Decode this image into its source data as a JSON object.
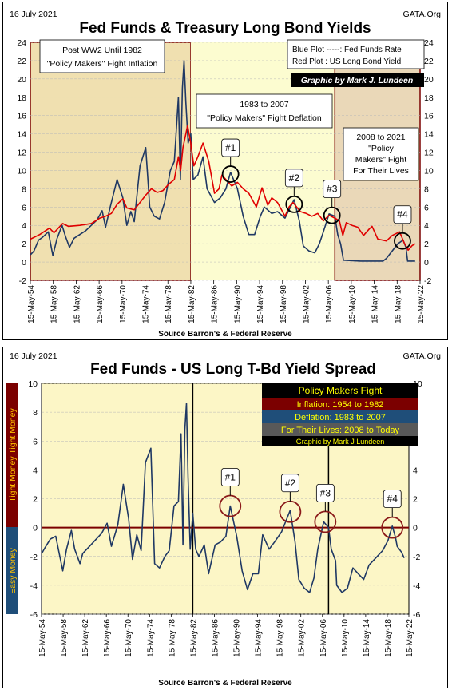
{
  "chart_data": [
    {
      "type": "line",
      "date": "16 July 2021",
      "brand": "GATA.Org",
      "title": "Fed Funds & Treasury Long Bond Yields",
      "source": "Source Barron's & Federal Reserve",
      "ylim": [
        -2,
        24
      ],
      "yticks": [
        -2,
        0,
        2,
        4,
        6,
        8,
        10,
        12,
        14,
        16,
        18,
        20,
        22,
        24
      ],
      "xlim": [
        1954.37,
        2022.37
      ],
      "xticks": [
        "15-May-54",
        "15-May-58",
        "15-May-62",
        "15-May-66",
        "15-May-70",
        "15-May-74",
        "15-May-78",
        "15-May-82",
        "15-May-86",
        "15-May-90",
        "15-May-94",
        "15-May-98",
        "15-May-02",
        "15-May-06",
        "15-May-10",
        "15-May-14",
        "15-May-18",
        "15-May-22"
      ],
      "legend": {
        "blue": "Blue Plot -----: Fed Funds Rate",
        "red": "Red Plot : US Long Bond Yield",
        "credit": "Graphic by Mark J. Lundeen"
      },
      "regions": [
        {
          "from": 1954.37,
          "to": 1982.37,
          "label_lines": [
            "Post WW2 Until 1982",
            "\"Policy Makers\" Fight Inflation"
          ]
        },
        {
          "from": 1982.37,
          "to": 2007.5,
          "label_lines": [
            "1983 to 2007",
            "\"Policy Makers\" Fight Deflation"
          ]
        },
        {
          "from": 2007.5,
          "to": 2022.37,
          "label_lines": [
            "2008 to 2021",
            "\"Policy",
            "Makers\" Fight",
            "For Their Lives"
          ]
        }
      ],
      "markers": [
        {
          "label": "#1",
          "x": 1989.3,
          "y": 9.6
        },
        {
          "label": "#2",
          "x": 2000.4,
          "y": 6.3
        },
        {
          "label": "#3",
          "x": 2007.0,
          "y": 5.1
        },
        {
          "label": "#4",
          "x": 2019.3,
          "y": 2.3
        }
      ],
      "series": [
        {
          "name": "Fed Funds Rate",
          "color": "#1f3864",
          "points": [
            [
              1954.4,
              0.8
            ],
            [
              1955.0,
              1.2
            ],
            [
              1955.8,
              2.4
            ],
            [
              1956.5,
              2.7
            ],
            [
              1957.5,
              3.3
            ],
            [
              1958.3,
              0.7
            ],
            [
              1959.0,
              2.5
            ],
            [
              1959.9,
              4.0
            ],
            [
              1960.5,
              2.8
            ],
            [
              1961.2,
              1.6
            ],
            [
              1962.0,
              2.6
            ],
            [
              1963.0,
              3.0
            ],
            [
              1964.0,
              3.4
            ],
            [
              1965.0,
              4.0
            ],
            [
              1966.0,
              4.6
            ],
            [
              1966.9,
              5.6
            ],
            [
              1967.5,
              3.8
            ],
            [
              1968.3,
              6.0
            ],
            [
              1969.5,
              9.0
            ],
            [
              1970.5,
              7.0
            ],
            [
              1971.2,
              4.0
            ],
            [
              1971.9,
              5.5
            ],
            [
              1972.5,
              4.4
            ],
            [
              1973.5,
              10.5
            ],
            [
              1974.5,
              12.5
            ],
            [
              1975.2,
              6.0
            ],
            [
              1976.0,
              5.0
            ],
            [
              1976.9,
              4.7
            ],
            [
              1977.8,
              6.5
            ],
            [
              1978.8,
              10.0
            ],
            [
              1979.5,
              11.0
            ],
            [
              1980.2,
              18.0
            ],
            [
              1980.55,
              9.0
            ],
            [
              1980.9,
              19.0
            ],
            [
              1981.2,
              22.0
            ],
            [
              1981.5,
              17.5
            ],
            [
              1981.9,
              13.0
            ],
            [
              1982.37,
              14.0
            ],
            [
              1982.8,
              9.0
            ],
            [
              1983.6,
              9.5
            ],
            [
              1984.5,
              11.5
            ],
            [
              1985.2,
              8.0
            ],
            [
              1986.5,
              6.5
            ],
            [
              1987.5,
              7.0
            ],
            [
              1988.5,
              8.0
            ],
            [
              1989.3,
              9.8
            ],
            [
              1990.5,
              8.0
            ],
            [
              1991.5,
              5.0
            ],
            [
              1992.5,
              3.0
            ],
            [
              1993.5,
              3.0
            ],
            [
              1994.5,
              5.0
            ],
            [
              1995.2,
              6.0
            ],
            [
              1996.5,
              5.3
            ],
            [
              1997.5,
              5.5
            ],
            [
              1998.8,
              4.8
            ],
            [
              2000.4,
              6.8
            ],
            [
              2001.3,
              4.5
            ],
            [
              2002.0,
              1.75
            ],
            [
              2003.0,
              1.2
            ],
            [
              2004.0,
              1.0
            ],
            [
              2004.8,
              2.0
            ],
            [
              2005.5,
              3.3
            ],
            [
              2006.5,
              5.25
            ],
            [
              2007.5,
              5.0
            ],
            [
              2008.0,
              3.0
            ],
            [
              2008.5,
              2.0
            ],
            [
              2009.0,
              0.2
            ],
            [
              2012.0,
              0.1
            ],
            [
              2015.9,
              0.1
            ],
            [
              2016.5,
              0.4
            ],
            [
              2017.5,
              1.2
            ],
            [
              2018.5,
              2.0
            ],
            [
              2019.4,
              2.4
            ],
            [
              2019.9,
              1.6
            ],
            [
              2020.2,
              0.1
            ],
            [
              2021.5,
              0.1
            ]
          ]
        },
        {
          "name": "US Long Bond Yield",
          "color": "#e00000",
          "points": [
            [
              1954.4,
              2.5
            ],
            [
              1956.0,
              3.0
            ],
            [
              1957.7,
              3.7
            ],
            [
              1958.5,
              3.2
            ],
            [
              1960.0,
              4.2
            ],
            [
              1961.0,
              3.9
            ],
            [
              1963.0,
              4.0
            ],
            [
              1965.0,
              4.2
            ],
            [
              1966.5,
              4.8
            ],
            [
              1967.5,
              5.0
            ],
            [
              1968.5,
              5.3
            ],
            [
              1969.5,
              6.3
            ],
            [
              1970.5,
              6.9
            ],
            [
              1971.2,
              5.9
            ],
            [
              1972.5,
              5.7
            ],
            [
              1973.5,
              6.5
            ],
            [
              1974.5,
              7.3
            ],
            [
              1975.5,
              8.0
            ],
            [
              1976.5,
              7.6
            ],
            [
              1977.5,
              7.8
            ],
            [
              1978.5,
              8.5
            ],
            [
              1979.5,
              9.0
            ],
            [
              1980.2,
              11.5
            ],
            [
              1980.6,
              10.0
            ],
            [
              1981.0,
              12.5
            ],
            [
              1981.8,
              14.9
            ],
            [
              1982.37,
              13.0
            ],
            [
              1982.9,
              10.5
            ],
            [
              1983.6,
              11.5
            ],
            [
              1984.5,
              13.0
            ],
            [
              1985.5,
              11.0
            ],
            [
              1986.5,
              7.5
            ],
            [
              1987.3,
              8.0
            ],
            [
              1987.8,
              9.5
            ],
            [
              1988.5,
              9.0
            ],
            [
              1989.5,
              8.3
            ],
            [
              1990.5,
              8.7
            ],
            [
              1991.5,
              8.0
            ],
            [
              1992.5,
              7.5
            ],
            [
              1993.8,
              6.0
            ],
            [
              1994.8,
              8.1
            ],
            [
              1995.8,
              6.2
            ],
            [
              1996.5,
              7.0
            ],
            [
              1997.5,
              6.5
            ],
            [
              1998.8,
              5.0
            ],
            [
              1999.5,
              6.0
            ],
            [
              2000.2,
              6.5
            ],
            [
              2001.5,
              5.5
            ],
            [
              2002.5,
              5.3
            ],
            [
              2003.5,
              5.0
            ],
            [
              2004.5,
              5.3
            ],
            [
              2005.5,
              4.5
            ],
            [
              2006.5,
              5.1
            ],
            [
              2007.5,
              4.8
            ],
            [
              2008.3,
              4.5
            ],
            [
              2008.9,
              2.9
            ],
            [
              2009.5,
              4.3
            ],
            [
              2010.5,
              4.0
            ],
            [
              2011.5,
              3.8
            ],
            [
              2012.5,
              2.9
            ],
            [
              2013.5,
              3.6
            ],
            [
              2014.0,
              3.9
            ],
            [
              2015.0,
              2.5
            ],
            [
              2016.5,
              2.3
            ],
            [
              2017.5,
              2.9
            ],
            [
              2018.8,
              3.3
            ],
            [
              2019.6,
              2.1
            ],
            [
              2020.3,
              1.3
            ],
            [
              2021.0,
              1.8
            ],
            [
              2021.5,
              2.0
            ]
          ]
        }
      ]
    },
    {
      "type": "line",
      "date": "16 July 2021",
      "brand": "GATA.Org",
      "title": "Fed Funds - US Long T-Bd Yield Spread",
      "source": "Source Barron's & Federal Reserve",
      "ylim": [
        -6,
        10
      ],
      "yticks": [
        -6,
        -4,
        -2,
        0,
        2,
        4,
        6,
        8,
        10
      ],
      "xlim": [
        1954.37,
        2022.37
      ],
      "xticks": [
        "15-May-54",
        "15-May-58",
        "15-May-62",
        "15-May-66",
        "15-May-70",
        "15-May-74",
        "15-May-78",
        "15-May-82",
        "15-May-86",
        "15-May-90",
        "15-May-94",
        "15-May-98",
        "15-May-02",
        "15-May-06",
        "15-May-10",
        "15-May-14",
        "15-May-18",
        "15-May-22"
      ],
      "side_labels": {
        "top": "Tight Money  Tight Money",
        "bottom": "Easy Money"
      },
      "legend": {
        "title": "Policy Makers Fight",
        "inflation": "Inflation: 1954 to 1982",
        "deflation": "Deflation: 1983 to 2007",
        "lives": "For Their Lives: 2008 to Today",
        "credit": "Graphic by Mark J Lundeen"
      },
      "markers": [
        {
          "label": "#1",
          "x": 1989.3,
          "y": 1.5
        },
        {
          "label": "#2",
          "x": 2000.4,
          "y": 1.1
        },
        {
          "label": "#3",
          "x": 2006.9,
          "y": 0.4
        },
        {
          "label": "#4",
          "x": 2019.3,
          "y": 0.0
        }
      ],
      "series": [
        {
          "name": "Spread",
          "color": "#1f3864",
          "points": [
            [
              1954.4,
              -1.8
            ],
            [
              1955.0,
              -1.4
            ],
            [
              1956.0,
              -0.8
            ],
            [
              1957.0,
              -0.6
            ],
            [
              1958.3,
              -3.0
            ],
            [
              1959.0,
              -1.5
            ],
            [
              1959.9,
              -0.2
            ],
            [
              1960.5,
              -1.5
            ],
            [
              1961.5,
              -2.5
            ],
            [
              1962.0,
              -1.8
            ],
            [
              1963.5,
              -1.2
            ],
            [
              1964.5,
              -0.8
            ],
            [
              1965.5,
              -0.4
            ],
            [
              1966.5,
              0.3
            ],
            [
              1967.3,
              -1.3
            ],
            [
              1968.5,
              0.2
            ],
            [
              1969.5,
              3.0
            ],
            [
              1970.5,
              0.6
            ],
            [
              1971.2,
              -2.2
            ],
            [
              1972.0,
              -0.5
            ],
            [
              1972.8,
              -1.6
            ],
            [
              1973.6,
              4.5
            ],
            [
              1974.6,
              5.5
            ],
            [
              1975.3,
              -2.5
            ],
            [
              1976.2,
              -2.8
            ],
            [
              1977.2,
              -2.0
            ],
            [
              1978.0,
              -1.6
            ],
            [
              1978.9,
              1.5
            ],
            [
              1979.7,
              1.8
            ],
            [
              1980.2,
              6.5
            ],
            [
              1980.55,
              -1.2
            ],
            [
              1980.9,
              6.8
            ],
            [
              1981.2,
              8.6
            ],
            [
              1981.5,
              3.5
            ],
            [
              1981.9,
              -1.5
            ],
            [
              1982.37,
              1.0
            ],
            [
              1982.9,
              -1.5
            ],
            [
              1983.5,
              -2.0
            ],
            [
              1984.5,
              -1.2
            ],
            [
              1985.3,
              -3.2
            ],
            [
              1986.5,
              -1.2
            ],
            [
              1987.5,
              -1.0
            ],
            [
              1988.5,
              -0.6
            ],
            [
              1989.3,
              1.5
            ],
            [
              1990.5,
              -0.6
            ],
            [
              1991.5,
              -3.0
            ],
            [
              1992.5,
              -4.3
            ],
            [
              1993.5,
              -3.2
            ],
            [
              1994.5,
              -3.2
            ],
            [
              1995.3,
              -0.5
            ],
            [
              1996.5,
              -1.5
            ],
            [
              1997.5,
              -1.0
            ],
            [
              1998.8,
              -0.3
            ],
            [
              2000.4,
              1.2
            ],
            [
              2001.3,
              -1.0
            ],
            [
              2002.0,
              -3.6
            ],
            [
              2003.0,
              -4.2
            ],
            [
              2004.0,
              -4.5
            ],
            [
              2004.8,
              -3.5
            ],
            [
              2005.5,
              -1.5
            ],
            [
              2006.6,
              0.4
            ],
            [
              2007.5,
              0.0
            ],
            [
              2008.0,
              -1.5
            ],
            [
              2008.8,
              -2.3
            ],
            [
              2009.0,
              -4.0
            ],
            [
              2010.0,
              -4.5
            ],
            [
              2011.0,
              -4.2
            ],
            [
              2012.0,
              -2.8
            ],
            [
              2013.0,
              -3.2
            ],
            [
              2014.0,
              -3.6
            ],
            [
              2015.0,
              -2.6
            ],
            [
              2016.5,
              -2.0
            ],
            [
              2017.5,
              -1.6
            ],
            [
              2018.5,
              -0.9
            ],
            [
              2019.3,
              0.1
            ],
            [
              2019.9,
              -0.7
            ],
            [
              2020.2,
              -1.3
            ],
            [
              2021.0,
              -1.7
            ],
            [
              2021.5,
              -2.1
            ]
          ]
        }
      ]
    }
  ]
}
